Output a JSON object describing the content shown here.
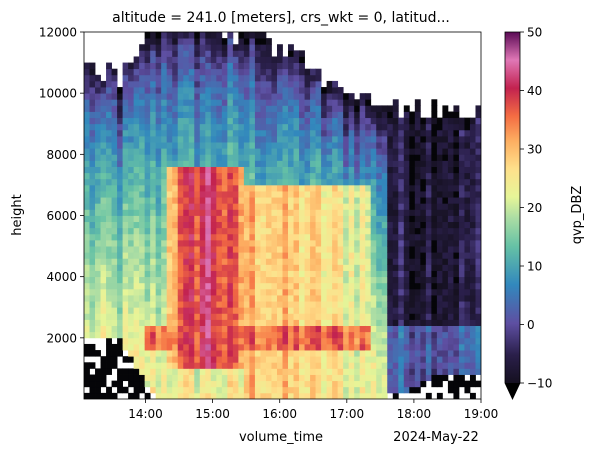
{
  "chart_data": {
    "type": "heatmap",
    "title": "altitude = 241.0 [meters], crs_wkt = 0, latitud...",
    "xlabel": "volume_time",
    "ylabel": "height",
    "x_offset_label": "2024-May-22",
    "x_range": [
      "13:05",
      "19:00"
    ],
    "x_ticks": [
      "14:00",
      "15:00",
      "16:00",
      "17:00",
      "18:00",
      "19:00"
    ],
    "ylim": [
      0,
      12000
    ],
    "y_ticks": [
      2000,
      4000,
      6000,
      8000,
      10000,
      12000
    ],
    "colorbar": {
      "label": "qvp_DBZ",
      "colormap": "Spectral_r",
      "range": [
        -10,
        50
      ],
      "ticks": [
        -10,
        0,
        10,
        20,
        30,
        40,
        50
      ],
      "extend": "min",
      "under_color": "#000000"
    },
    "grid": false,
    "regions": [
      {
        "name": "echo top",
        "time_start": "13:05",
        "time_end": "19:00",
        "top_height_m": [
          10700,
          10300,
          12000,
          12000,
          11800,
          11500,
          10900,
          9700,
          9600,
          9200,
          9000,
          9200
        ]
      },
      {
        "name": "echo base",
        "time_start": "13:05",
        "time_end": "19:00",
        "base_height_m": [
          2000,
          1900,
          0,
          0,
          0,
          0,
          0,
          0,
          0,
          300,
          900,
          900
        ]
      },
      {
        "name": "maximum reflectivity",
        "time_start": "14:20",
        "time_end": "15:30",
        "height_range_m": [
          1000,
          7500
        ],
        "dbz": 40
      },
      {
        "name": "bright band",
        "time_start": "14:00",
        "time_end": "17:20",
        "height_m": 2000,
        "dbz": 35
      }
    ]
  }
}
